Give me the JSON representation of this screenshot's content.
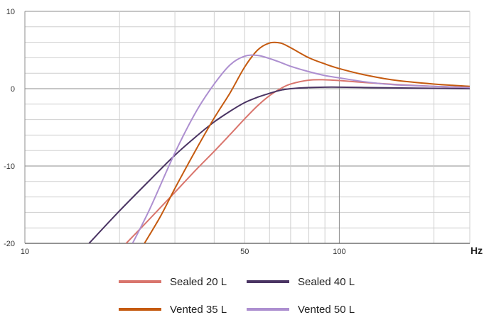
{
  "chart_data": {
    "type": "line",
    "title": "",
    "xlabel": "",
    "ylabel": "",
    "x_unit_label": "Hz",
    "x_scale": "log",
    "xlim": [
      10,
      260
    ],
    "ylim": [
      -20,
      10
    ],
    "x_tick_labels": [
      {
        "value": 10,
        "label": "10"
      },
      {
        "value": 50,
        "label": "50"
      },
      {
        "value": 100,
        "label": "100"
      }
    ],
    "y_tick_labels": [
      {
        "value": 10,
        "label": "10"
      },
      {
        "value": 0,
        "label": "0"
      },
      {
        "value": -10,
        "label": "-10"
      },
      {
        "value": -20,
        "label": "-20"
      }
    ],
    "grid": true,
    "legend_position": "bottom",
    "series": [
      {
        "name": "Sealed 20 L",
        "color": "#d9756d",
        "x": [
          21,
          25,
          30,
          35,
          40,
          45,
          50,
          55,
          60,
          65,
          70,
          80,
          90,
          100,
          120,
          150,
          200,
          260
        ],
        "y": [
          -20,
          -16.8,
          -13.4,
          -10.5,
          -8.1,
          -5.9,
          -3.9,
          -2.2,
          -0.9,
          0.0,
          0.6,
          1.1,
          1.15,
          1.05,
          0.8,
          0.55,
          0.3,
          0.15
        ]
      },
      {
        "name": "Sealed 40 L",
        "color": "#4a3463",
        "x": [
          16,
          20,
          25,
          30,
          35,
          40,
          45,
          50,
          55,
          60,
          65,
          70,
          80,
          90,
          100,
          120,
          150,
          200,
          260
        ],
        "y": [
          -20,
          -15.8,
          -11.8,
          -8.6,
          -6.2,
          -4.3,
          -2.9,
          -1.8,
          -1.1,
          -0.6,
          -0.2,
          0.0,
          0.15,
          0.2,
          0.2,
          0.15,
          0.1,
          0.05,
          0.0
        ]
      },
      {
        "name": "Vented 35 L",
        "color": "#c55a0f",
        "x": [
          24,
          27,
          30,
          35,
          40,
          45,
          50,
          55,
          60,
          65,
          70,
          80,
          90,
          100,
          120,
          150,
          200,
          260
        ],
        "y": [
          -20,
          -16.5,
          -12.9,
          -7.9,
          -3.8,
          -0.5,
          2.8,
          5.0,
          5.9,
          5.9,
          5.3,
          4.0,
          3.2,
          2.6,
          1.8,
          1.1,
          0.6,
          0.3
        ]
      },
      {
        "name": "Vented 50 L",
        "color": "#ad8fd0",
        "x": [
          22,
          25,
          30,
          35,
          40,
          45,
          50,
          55,
          60,
          65,
          70,
          80,
          90,
          100,
          120,
          150,
          200,
          260
        ],
        "y": [
          -20,
          -15.5,
          -8.3,
          -3.0,
          0.6,
          3.1,
          4.2,
          4.3,
          3.9,
          3.4,
          2.9,
          2.2,
          1.7,
          1.4,
          0.9,
          0.5,
          0.3,
          0.15
        ]
      }
    ]
  }
}
